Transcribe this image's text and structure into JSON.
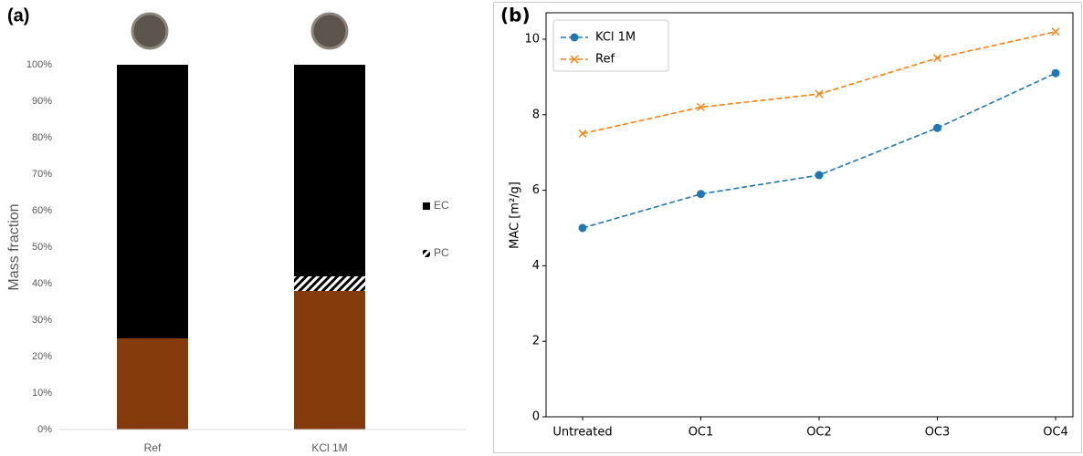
{
  "chart_data": [
    {
      "type": "stacked-bar",
      "panel_label": "(a)",
      "y_label": "Mass fraction",
      "categories": [
        "Ref",
        "KCl 1M"
      ],
      "series": [
        {
          "color": "#843c0c",
          "values": [
            25,
            38
          ]
        },
        {
          "name": "PC",
          "color": "#000000",
          "hatch": true,
          "values": [
            0,
            4
          ]
        },
        {
          "name": "EC",
          "color": "#000000",
          "values": [
            75,
            58
          ]
        }
      ],
      "ylim": [
        0,
        100
      ],
      "yticks": [
        {
          "value": 0,
          "label": "0%"
        },
        {
          "value": 10,
          "label": "10%"
        },
        {
          "value": 20,
          "label": "20%"
        },
        {
          "value": 30,
          "label": "30%"
        },
        {
          "value": 40,
          "label": "40%"
        },
        {
          "value": 50,
          "label": "50%"
        },
        {
          "value": 60,
          "label": "60%"
        },
        {
          "value": 70,
          "label": "70%"
        },
        {
          "value": 80,
          "label": "80%"
        },
        {
          "value": 90,
          "label": "90%"
        },
        {
          "value": 100,
          "label": "100%"
        }
      ]
    },
    {
      "type": "line",
      "panel_label": "(b)",
      "y_label": "MAC [m²/g]",
      "categories": [
        "Untreated",
        "OC1",
        "OC2",
        "OC3",
        "OC4"
      ],
      "series": [
        {
          "name": "KCl 1M",
          "color": "#1f77b4",
          "marker": "circle",
          "linestyle": "dashed",
          "values": [
            5.0,
            5.9,
            6.4,
            7.65,
            9.1
          ]
        },
        {
          "name": "Ref",
          "color": "#ff7f0e",
          "marker": "x",
          "linestyle": "dashed",
          "values": [
            7.5,
            8.2,
            8.55,
            9.5,
            10.2
          ]
        }
      ],
      "ylim": [
        0,
        10.7
      ],
      "yticks": [
        0,
        2,
        4,
        6,
        8,
        10
      ],
      "legend": "upper left"
    }
  ]
}
